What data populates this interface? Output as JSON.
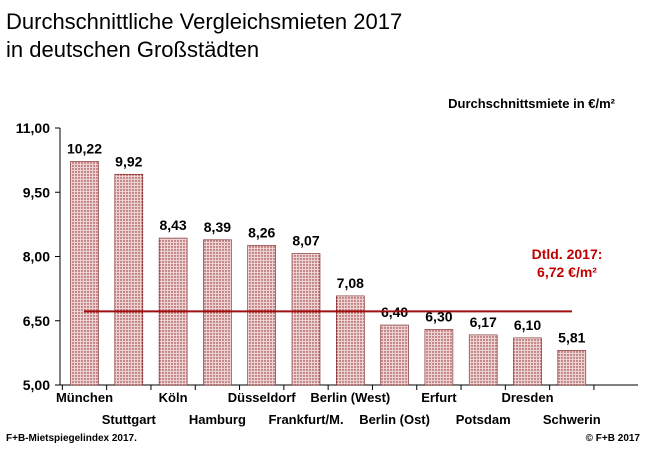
{
  "chart_data": {
    "type": "bar",
    "title_line1": "Durchschnittliche Vergleichsmieten 2017",
    "title_line2": "in deutschen Großstädten",
    "unit_label": "Durchschnittsmiete  in €/m²",
    "categories": [
      "München",
      "Stuttgart",
      "Köln",
      "Hamburg",
      "Düsseldorf",
      "Frankfurt/M.",
      "Berlin (West)",
      "Berlin (Ost)",
      "Erfurt",
      "Potsdam",
      "Dresden",
      "Schwerin"
    ],
    "values": [
      10.22,
      9.92,
      8.43,
      8.39,
      8.26,
      8.07,
      7.08,
      6.4,
      6.3,
      6.17,
      6.1,
      5.81
    ],
    "value_labels": [
      "10,22",
      "9,92",
      "8,43",
      "8,39",
      "8,26",
      "8,07",
      "7,08",
      "6,40",
      "6,30",
      "6,17",
      "6,10",
      "5,81"
    ],
    "ylim": [
      5.0,
      11.0
    ],
    "yticks": [
      5.0,
      6.5,
      8.0,
      9.5,
      11.0
    ],
    "ytick_labels": [
      "5,00",
      "6,50",
      "8,00",
      "9,50",
      "11,00"
    ],
    "reference": {
      "value": 6.72,
      "label_line1": "Dtld. 2017:",
      "label_line2": "6,72 €/m²"
    },
    "colors": {
      "bar_fill": "#e8c8c8",
      "bar_hatch": "#8b1a1a",
      "reference_line": "#a01010",
      "reference_text": "#c00000"
    }
  },
  "footer": {
    "source": "F+B-Mietspiegelindex 2017.",
    "copyright": "© F+B 2017"
  }
}
